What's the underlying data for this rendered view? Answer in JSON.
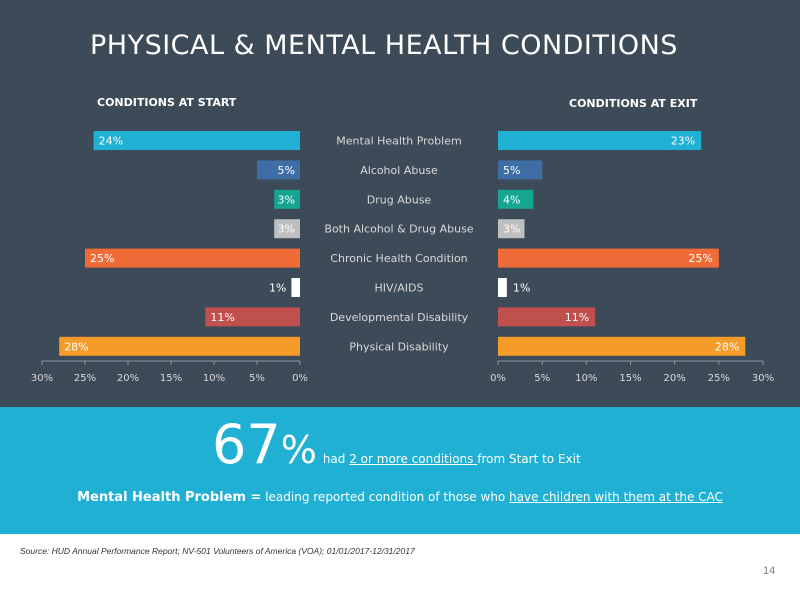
{
  "slide": {
    "title": "PHYSICAL & MENTAL HEALTH CONDITIONS",
    "start_label": "CONDITIONS AT START",
    "exit_label": "CONDITIONS AT EXIT",
    "big_stat_value": "67",
    "big_stat_sign": "%",
    "stat_pre": "had ",
    "stat_link": "2 or more conditions ",
    "stat_post": "from Start to Exit",
    "insight_bold": "Mental Health Problem =",
    "insight_pre": " leading reported condition of those who ",
    "insight_link": "have children with them at the CAC",
    "source": "Source: HUD Annual Performance Report; NV-501 Volunteers of America (VOA); 01/01/2017-12/31/2017",
    "page_number": "14"
  },
  "colors": {
    "background_top": "#3d4a57",
    "band": "#1fb0d4",
    "axis_text": "#d9d9d9",
    "bars": [
      "#1fb0d4",
      "#3f6ea6",
      "#16a590",
      "#bfbfbf",
      "#ef6c39",
      "#ffffff",
      "#c0504d",
      "#f59b2a"
    ]
  },
  "chart_data": [
    {
      "type": "bar",
      "orientation": "horizontal",
      "direction": "reversed",
      "title": "CONDITIONS AT START",
      "categories": [
        "Mental Health Problem",
        "Alcohol Abuse",
        "Drug Abuse",
        "Both Alcohol & Drug Abuse",
        "Chronic Health Condition",
        "HIV/AIDS",
        "Developmental Disability",
        "Physical Disability"
      ],
      "values": [
        24,
        5,
        3,
        3,
        25,
        1,
        11,
        28
      ],
      "data_labels": [
        "24%",
        "5%",
        "3%",
        "3%",
        "25%",
        "1%",
        "11%",
        "28%"
      ],
      "xlim": [
        0,
        30
      ],
      "ticks": [
        30,
        25,
        20,
        15,
        10,
        5,
        0
      ],
      "tick_labels": [
        "30%",
        "25%",
        "20%",
        "15%",
        "10%",
        "5%",
        "0%"
      ],
      "grid": false
    },
    {
      "type": "bar",
      "orientation": "horizontal",
      "title": "CONDITIONS AT EXIT",
      "categories": [
        "Mental Health Problem",
        "Alcohol Abuse",
        "Drug Abuse",
        "Both Alcohol & Drug Abuse",
        "Chronic Health Condition",
        "HIV/AIDS",
        "Developmental Disability",
        "Physical Disability"
      ],
      "values": [
        23,
        5,
        4,
        3,
        25,
        1,
        11,
        28
      ],
      "data_labels": [
        "23%",
        "5%",
        "4%",
        "3%",
        "25%",
        "1%",
        "11%",
        "28%"
      ],
      "xlim": [
        0,
        30
      ],
      "ticks": [
        0,
        5,
        10,
        15,
        20,
        25,
        30
      ],
      "tick_labels": [
        "0%",
        "5%",
        "10%",
        "15%",
        "20%",
        "25%",
        "30%"
      ],
      "grid": false
    }
  ]
}
